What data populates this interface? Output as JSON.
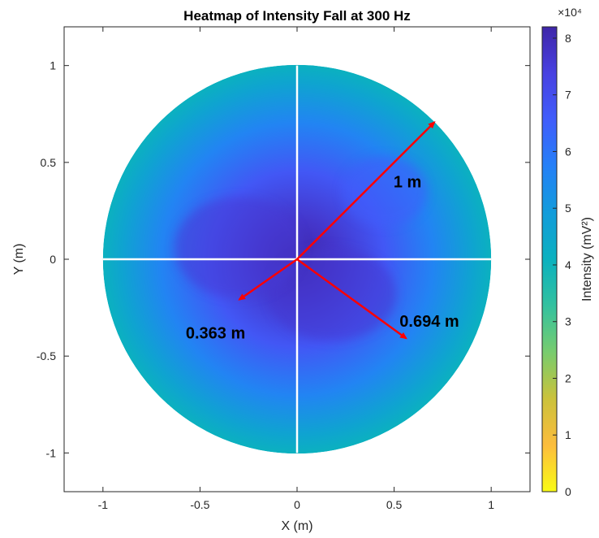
{
  "chart_data": {
    "type": "heatmap",
    "title": "Heatmap of Intensity Fall at 300 Hz",
    "xlabel": "X (m)",
    "ylabel": "Y (m)",
    "xlim": [
      -1.2,
      1.2
    ],
    "ylim": [
      -1.2,
      1.2
    ],
    "xticks": [
      -1,
      -0.5,
      0,
      0.5,
      1
    ],
    "yticks": [
      -1,
      -0.5,
      0,
      0.5,
      1
    ],
    "grid": false,
    "disk_radius": 1,
    "colorbar": {
      "label": "Intensity  (mV²)",
      "range": [
        0,
        82000
      ],
      "ticks": [
        0,
        1,
        2,
        3,
        4,
        5,
        6,
        7,
        8
      ],
      "multiplier": "×10⁴",
      "colormap": "parula"
    },
    "intensity": {
      "max_at_center": 82000,
      "at_edge": 41000
    },
    "arrows": [
      {
        "label": "1 m",
        "angle_deg": 45,
        "length": 1,
        "color": "#ff0000"
      },
      {
        "label": "0.363 m",
        "angle_deg": 215,
        "length": 0.363,
        "color": "#ff0000"
      },
      {
        "label": "0.694 m",
        "angle_deg": -36,
        "length": 0.694,
        "color": "#ff0000"
      }
    ]
  }
}
